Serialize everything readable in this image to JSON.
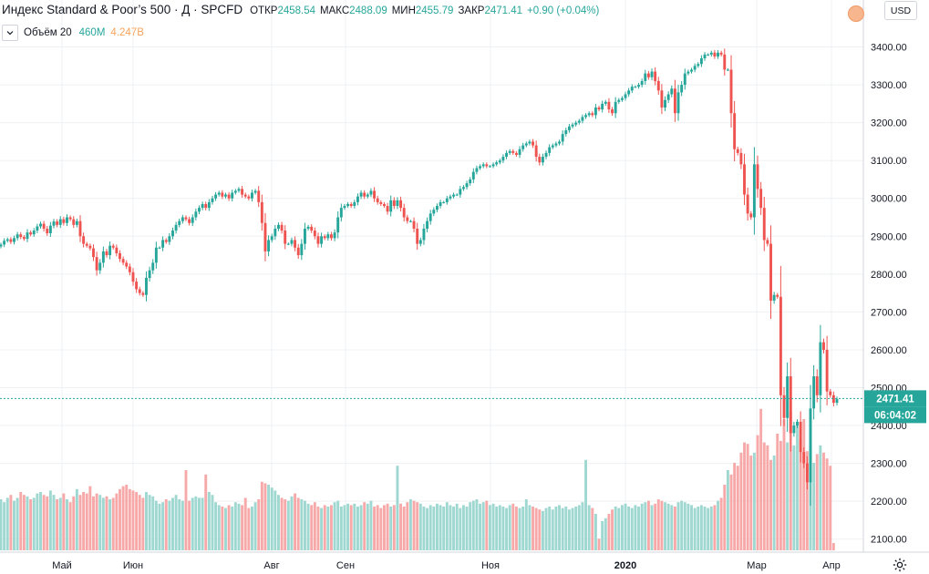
{
  "header": {
    "title": "Индекс Standard & Poor’s 500 · Д · SPCFD",
    "ohlc": [
      {
        "label": "ОТКР",
        "value": "2458.54"
      },
      {
        "label": "МАКС",
        "value": "2488.09"
      },
      {
        "label": "МИН",
        "value": "2455.79"
      },
      {
        "label": "ЗАКР",
        "value": "2471.41"
      }
    ],
    "change": "+0.90 (+0.04%)",
    "currency_button": "USD"
  },
  "volume_legend": {
    "label": "Объём 20",
    "value_a": "460M",
    "value_b": "4.247B"
  },
  "price_label": "2471.41",
  "countdown_label": "06:04:02",
  "colors": {
    "up": "#26a69a",
    "down": "#ef5350",
    "volume_up": "#9fd7d1",
    "volume_down": "#f6a9a8",
    "grid": "#eef0f3",
    "price_line": "#26a69a"
  },
  "chart_data": {
    "type": "candlestick",
    "title": "",
    "y_axis_ticks": [
      2100,
      2200,
      2300,
      2400,
      2500,
      2600,
      2700,
      2800,
      2900,
      3000,
      3100,
      3200,
      3300,
      3400
    ],
    "ylim": [
      2080,
      3500
    ],
    "x_axis_labels": [
      "Май",
      "Июн",
      "Авг",
      "Сен",
      "Ноя",
      "2020",
      "Мар",
      "Апр"
    ],
    "grid": true,
    "last_close": 2471.41,
    "series_close": [
      2878,
      2888,
      2892,
      2885,
      2895,
      2905,
      2898,
      2893,
      2910,
      2905,
      2915,
      2926,
      2933,
      2920,
      2908,
      2928,
      2939,
      2930,
      2945,
      2935,
      2950,
      2945,
      2930,
      2940,
      2900,
      2880,
      2875,
      2868,
      2845,
      2810,
      2830,
      2860,
      2850,
      2875,
      2870,
      2855,
      2840,
      2830,
      2820,
      2805,
      2780,
      2760,
      2750,
      2745,
      2790,
      2810,
      2830,
      2870,
      2870,
      2890,
      2885,
      2900,
      2915,
      2930,
      2940,
      2950,
      2945,
      2935,
      2950,
      2965,
      2975,
      2985,
      2975,
      2990,
      3000,
      3010,
      3015,
      3005,
      3010,
      3000,
      3015,
      3020,
      3025,
      3010,
      3005,
      3000,
      3015,
      3020,
      2990,
      2935,
      2860,
      2890,
      2900,
      2920,
      2930,
      2915,
      2880,
      2880,
      2890,
      2870,
      2850,
      2880,
      2920,
      2925,
      2915,
      2900,
      2880,
      2900,
      2895,
      2905,
      2895,
      2910,
      2950,
      2975,
      2980,
      2985,
      2980,
      2990,
      3005,
      3015,
      3005,
      3010,
      3020,
      3000,
      2990,
      2985,
      2980,
      2965,
      2995,
      2980,
      2995,
      2975,
      2950,
      2940,
      2940,
      2920,
      2880,
      2890,
      2920,
      2940,
      2960,
      2970,
      2980,
      2990,
      2990,
      3000,
      3005,
      3010,
      3010,
      3025,
      3030,
      3040,
      3050,
      3070,
      3080,
      3085,
      3090,
      3085,
      3085,
      3090,
      3095,
      3100,
      3110,
      3120,
      3125,
      3120,
      3115,
      3130,
      3140,
      3145,
      3150,
      3140,
      3110,
      3095,
      3110,
      3120,
      3135,
      3140,
      3145,
      3150,
      3170,
      3180,
      3190,
      3195,
      3200,
      3205,
      3215,
      3220,
      3225,
      3220,
      3240,
      3235,
      3250,
      3255,
      3235,
      3225,
      3255,
      3260,
      3265,
      3275,
      3285,
      3295,
      3295,
      3300,
      3310,
      3330,
      3320,
      3335,
      3310,
      3285,
      3240,
      3260,
      3275,
      3290,
      3225,
      3280,
      3300,
      3330,
      3335,
      3340,
      3350,
      3355,
      3370,
      3380,
      3380,
      3385,
      3375,
      3385,
      3380,
      3340,
      3340,
      3225,
      3130,
      3120,
      3090,
      3010,
      2960,
      2950,
      3090,
      3025,
      2975,
      2890,
      2880,
      2730,
      2745,
      2740,
      2480,
      2420,
      2530,
      2380,
      2400,
      2410,
      2330,
      2300,
      2250,
      2445,
      2530,
      2480,
      2620,
      2600,
      2490,
      2480,
      2460,
      2470
    ],
    "series_volume": [
      0.35,
      0.33,
      0.36,
      0.38,
      0.34,
      0.36,
      0.4,
      0.38,
      0.37,
      0.35,
      0.36,
      0.39,
      0.4,
      0.38,
      0.37,
      0.41,
      0.38,
      0.35,
      0.36,
      0.39,
      0.35,
      0.33,
      0.37,
      0.42,
      0.38,
      0.4,
      0.39,
      0.44,
      0.37,
      0.39,
      0.38,
      0.36,
      0.37,
      0.35,
      0.36,
      0.39,
      0.42,
      0.44,
      0.45,
      0.42,
      0.41,
      0.4,
      0.38,
      0.36,
      0.4,
      0.38,
      0.37,
      0.34,
      0.32,
      0.33,
      0.35,
      0.34,
      0.36,
      0.38,
      0.35,
      0.34,
      0.55,
      0.34,
      0.36,
      0.37,
      0.36,
      0.36,
      0.52,
      0.4,
      0.38,
      0.33,
      0.31,
      0.3,
      0.29,
      0.31,
      0.3,
      0.33,
      0.32,
      0.31,
      0.36,
      0.29,
      0.3,
      0.33,
      0.35,
      0.47,
      0.46,
      0.45,
      0.43,
      0.41,
      0.38,
      0.36,
      0.35,
      0.34,
      0.37,
      0.39,
      0.36,
      0.35,
      0.34,
      0.32,
      0.31,
      0.33,
      0.3,
      0.29,
      0.31,
      0.3,
      0.31,
      0.33,
      0.34,
      0.3,
      0.31,
      0.32,
      0.31,
      0.32,
      0.3,
      0.31,
      0.33,
      0.32,
      0.34,
      0.3,
      0.31,
      0.29,
      0.31,
      0.32,
      0.3,
      0.31,
      0.58,
      0.32,
      0.3,
      0.33,
      0.35,
      0.34,
      0.33,
      0.32,
      0.3,
      0.29,
      0.31,
      0.3,
      0.32,
      0.31,
      0.3,
      0.33,
      0.31,
      0.3,
      0.32,
      0.29,
      0.31,
      0.3,
      0.33,
      0.34,
      0.35,
      0.32,
      0.33,
      0.34,
      0.31,
      0.32,
      0.3,
      0.31,
      0.3,
      0.29,
      0.31,
      0.32,
      0.3,
      0.29,
      0.3,
      0.35,
      0.31,
      0.3,
      0.29,
      0.28,
      0.27,
      0.29,
      0.3,
      0.28,
      0.3,
      0.31,
      0.29,
      0.3,
      0.28,
      0.29,
      0.3,
      0.31,
      0.33,
      0.62,
      0.31,
      0.29,
      0.25,
      0.08,
      0.2,
      0.22,
      0.25,
      0.28,
      0.3,
      0.29,
      0.31,
      0.32,
      0.3,
      0.29,
      0.31,
      0.3,
      0.32,
      0.33,
      0.34,
      0.31,
      0.32,
      0.35,
      0.34,
      0.33,
      0.32,
      0.31,
      0.3,
      0.33,
      0.34,
      0.33,
      0.32,
      0.31,
      0.29,
      0.3,
      0.31,
      0.3,
      0.29,
      0.3,
      0.31,
      0.34,
      0.36,
      0.45,
      0.55,
      0.52,
      0.6,
      0.58,
      0.67,
      0.74,
      0.73,
      0.65,
      0.67,
      0.79,
      0.97,
      0.74,
      0.72,
      0.62,
      0.65,
      0.8,
      0.75,
      0.9,
      0.74,
      0.95,
      0.72,
      0.88,
      0.76,
      0.9,
      0.68,
      0.72,
      0.6,
      0.66,
      0.72,
      0.67,
      0.63,
      0.58,
      0.05
    ]
  }
}
